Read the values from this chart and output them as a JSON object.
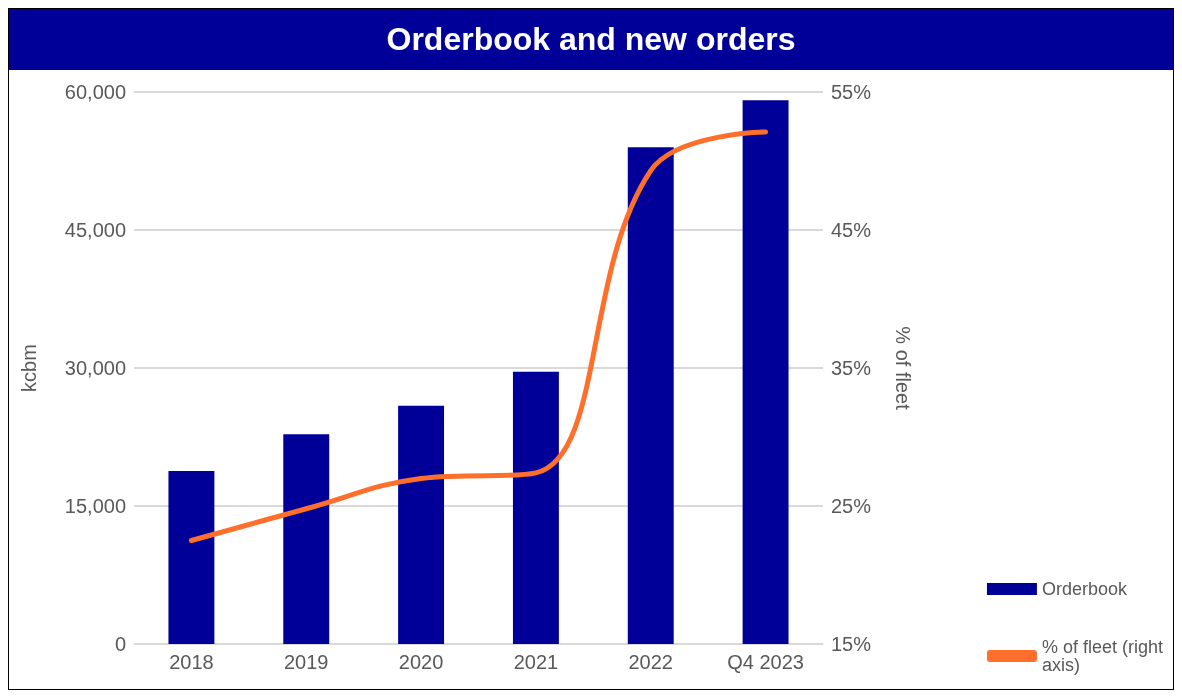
{
  "chart_data": {
    "type": "bar",
    "title": "Orderbook and new orders",
    "ylabel": "kcbm",
    "y2label": "% of fleet",
    "categories": [
      "2018",
      "2019",
      "2020",
      "2021",
      "2022",
      "Q4 2023"
    ],
    "series": [
      {
        "name": "Orderbook",
        "color": "#000099",
        "values": [
          18800,
          22800,
          25900,
          29600,
          54000,
          59100
        ]
      },
      {
        "name": "% of fleet (right axis)",
        "type": "line",
        "axis": "y2",
        "color": "#ff6f2c",
        "values": [
          22.5,
          24.8,
          27.0,
          27.4,
          49.3,
          52.1
        ]
      }
    ],
    "ylim": [
      0,
      60000
    ],
    "yticks": [
      {
        "value": 0,
        "label": "0"
      },
      {
        "value": 15000,
        "label": "15,000"
      },
      {
        "value": 30000,
        "label": "30,000"
      },
      {
        "value": 45000,
        "label": "45,000"
      },
      {
        "value": 60000,
        "label": "60,000"
      }
    ],
    "y2lim": [
      15,
      55
    ],
    "y2ticks": [
      {
        "value": 15,
        "label": "15%"
      },
      {
        "value": 25,
        "label": "25%"
      },
      {
        "value": 35,
        "label": "35%"
      },
      {
        "value": 45,
        "label": "45%"
      },
      {
        "value": 55,
        "label": "55%"
      }
    ],
    "grid": "y",
    "legend": "right",
    "marker": "none"
  }
}
